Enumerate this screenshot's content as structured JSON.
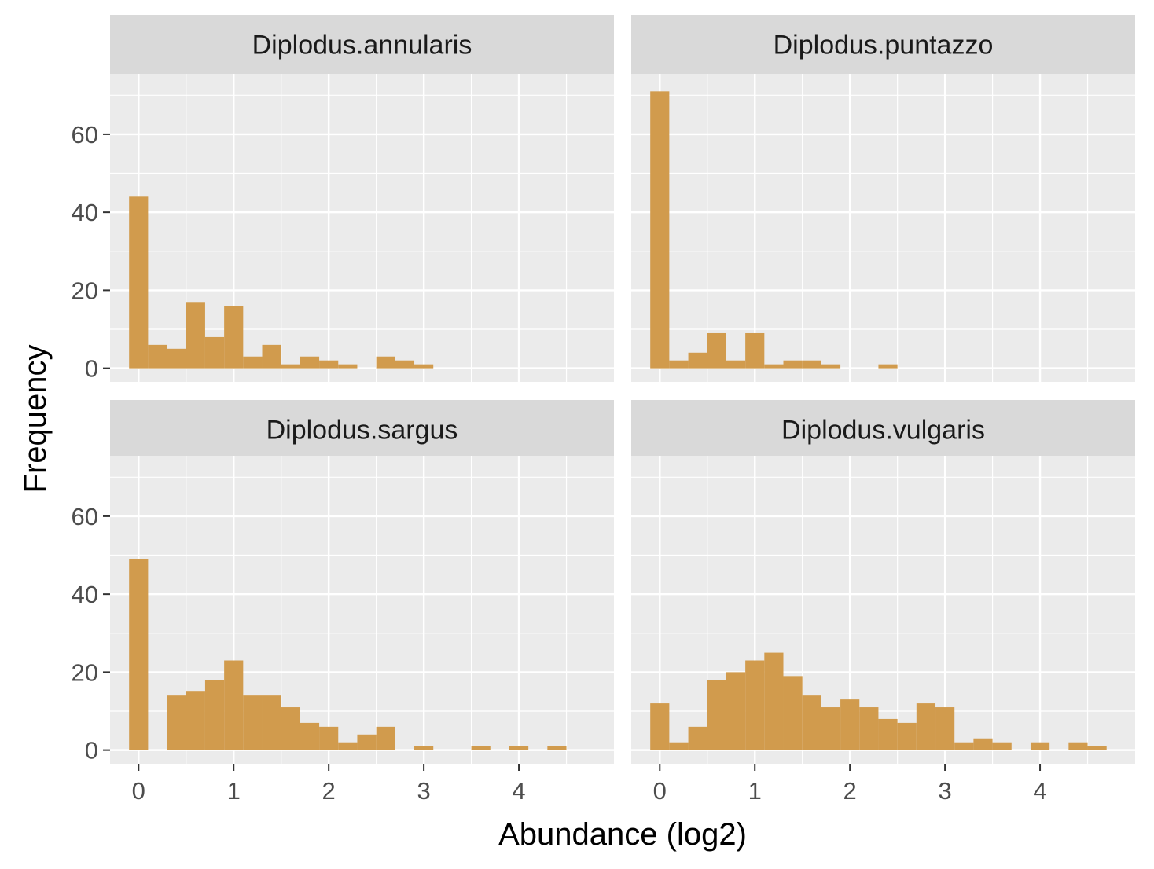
{
  "chart_data": {
    "type": "bar",
    "xlabel": "Abundance (log2)",
    "ylabel": "Frequency",
    "xlim": [
      -0.3,
      5.0
    ],
    "ylim": [
      -3.5,
      75.5
    ],
    "x_ticks": [
      0,
      1,
      2,
      3,
      4
    ],
    "y_ticks": [
      0,
      20,
      40,
      60
    ],
    "bin_width": 0.2,
    "grid": true,
    "fill_color": "#D19B4D",
    "panel_bg": "#EBEBEB",
    "strip_bg": "#D9D9D9",
    "panels": [
      {
        "name": "Diplodus.annularis",
        "bins": [
          {
            "x": 0.0,
            "count": 44
          },
          {
            "x": 0.2,
            "count": 6
          },
          {
            "x": 0.4,
            "count": 5
          },
          {
            "x": 0.6,
            "count": 17
          },
          {
            "x": 0.8,
            "count": 8
          },
          {
            "x": 1.0,
            "count": 16
          },
          {
            "x": 1.2,
            "count": 3
          },
          {
            "x": 1.4,
            "count": 6
          },
          {
            "x": 1.6,
            "count": 1
          },
          {
            "x": 1.8,
            "count": 3
          },
          {
            "x": 2.0,
            "count": 2
          },
          {
            "x": 2.2,
            "count": 1
          },
          {
            "x": 2.6,
            "count": 3
          },
          {
            "x": 2.8,
            "count": 2
          },
          {
            "x": 3.0,
            "count": 1
          }
        ]
      },
      {
        "name": "Diplodus.puntazzo",
        "bins": [
          {
            "x": 0.0,
            "count": 71
          },
          {
            "x": 0.2,
            "count": 2
          },
          {
            "x": 0.4,
            "count": 4
          },
          {
            "x": 0.6,
            "count": 9
          },
          {
            "x": 0.8,
            "count": 2
          },
          {
            "x": 1.0,
            "count": 9
          },
          {
            "x": 1.2,
            "count": 1
          },
          {
            "x": 1.4,
            "count": 2
          },
          {
            "x": 1.6,
            "count": 2
          },
          {
            "x": 1.8,
            "count": 1
          },
          {
            "x": 2.4,
            "count": 1
          }
        ]
      },
      {
        "name": "Diplodus.sargus",
        "bins": [
          {
            "x": 0.0,
            "count": 49
          },
          {
            "x": 0.4,
            "count": 14
          },
          {
            "x": 0.6,
            "count": 15
          },
          {
            "x": 0.8,
            "count": 18
          },
          {
            "x": 1.0,
            "count": 23
          },
          {
            "x": 1.2,
            "count": 14
          },
          {
            "x": 1.4,
            "count": 14
          },
          {
            "x": 1.6,
            "count": 11
          },
          {
            "x": 1.8,
            "count": 7
          },
          {
            "x": 2.0,
            "count": 6
          },
          {
            "x": 2.2,
            "count": 2
          },
          {
            "x": 2.4,
            "count": 4
          },
          {
            "x": 2.6,
            "count": 6
          },
          {
            "x": 3.0,
            "count": 1
          },
          {
            "x": 3.6,
            "count": 1
          },
          {
            "x": 4.0,
            "count": 1
          },
          {
            "x": 4.4,
            "count": 1
          }
        ]
      },
      {
        "name": "Diplodus.vulgaris",
        "bins": [
          {
            "x": 0.0,
            "count": 12
          },
          {
            "x": 0.2,
            "count": 2
          },
          {
            "x": 0.4,
            "count": 6
          },
          {
            "x": 0.6,
            "count": 18
          },
          {
            "x": 0.8,
            "count": 20
          },
          {
            "x": 1.0,
            "count": 23
          },
          {
            "x": 1.2,
            "count": 25
          },
          {
            "x": 1.4,
            "count": 19
          },
          {
            "x": 1.6,
            "count": 14
          },
          {
            "x": 1.8,
            "count": 11
          },
          {
            "x": 2.0,
            "count": 13
          },
          {
            "x": 2.2,
            "count": 11
          },
          {
            "x": 2.4,
            "count": 8
          },
          {
            "x": 2.6,
            "count": 7
          },
          {
            "x": 2.8,
            "count": 12
          },
          {
            "x": 3.0,
            "count": 11
          },
          {
            "x": 3.2,
            "count": 2
          },
          {
            "x": 3.4,
            "count": 3
          },
          {
            "x": 3.6,
            "count": 2
          },
          {
            "x": 4.0,
            "count": 2
          },
          {
            "x": 4.4,
            "count": 2
          },
          {
            "x": 4.6,
            "count": 1
          }
        ]
      }
    ]
  }
}
